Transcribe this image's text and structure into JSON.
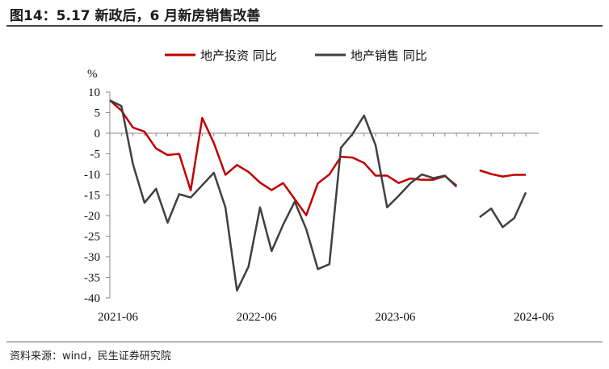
{
  "title": "图14：5.17 新政后，6 月新房销售改善",
  "source": "资料来源：wind，民生证券研究院",
  "chart_data": {
    "type": "line",
    "unit_label": "%",
    "ylim": [
      -40,
      10
    ],
    "y_ticks": [
      10,
      5,
      0,
      -5,
      -10,
      -15,
      -20,
      -25,
      -30,
      -35,
      -40
    ],
    "x_tick_labels": [
      "2021-06",
      "2022-06",
      "2023-06",
      "2024-06"
    ],
    "x_tick_index": [
      0,
      12,
      24,
      36
    ],
    "x": [
      "2021-06",
      "2021-07",
      "2021-08",
      "2021-09",
      "2021-10",
      "2021-11",
      "2021-12",
      "2022-01",
      "2022-02",
      "2022-03",
      "2022-04",
      "2022-05",
      "2022-06",
      "2022-07",
      "2022-08",
      "2022-09",
      "2022-10",
      "2022-11",
      "2022-12",
      "2023-01",
      "2023-02",
      "2023-03",
      "2023-04",
      "2023-05",
      "2023-06",
      "2023-07",
      "2023-08",
      "2023-09",
      "2023-10",
      "2023-11",
      "2023-12",
      "2024-01",
      "2024-02",
      "2024-03",
      "2024-04",
      "2024-05",
      "2024-06"
    ],
    "legend_position": "top-center",
    "grid": false,
    "series": [
      {
        "name": "地产投资 同比",
        "color": "#c00000",
        "values": [
          8.0,
          5.5,
          1.4,
          0.4,
          -3.7,
          -5.3,
          -5.0,
          -13.9,
          3.7,
          -2.4,
          -10.1,
          -7.7,
          -9.4,
          -12.0,
          -13.8,
          -12.1,
          -16.0,
          -19.9,
          -12.2,
          -10.0,
          -5.7,
          -5.9,
          -7.2,
          -10.3,
          -10.3,
          -12.1,
          -11.0,
          -11.3,
          -11.3,
          -10.4,
          -12.7,
          null,
          -9.0,
          -9.9,
          -10.5,
          -10.1,
          -10.1
        ],
        "values_note": ""
      },
      {
        "name": "地产销售 同比",
        "color": "#404040",
        "values": [
          8.0,
          6.6,
          -7.5,
          -16.9,
          -13.5,
          -21.7,
          -14.8,
          -15.6,
          -12.6,
          -9.6,
          -18.0,
          -38.2,
          -32.4,
          -18.0,
          -28.6,
          -22.2,
          -16.6,
          -23.3,
          -33.0,
          -31.8,
          -3.5,
          -0.2,
          4.3,
          -2.9,
          -18.0,
          -15.2,
          -12.2,
          -10.0,
          -10.9,
          -10.3,
          -13.0,
          null,
          -20.4,
          -18.3,
          -22.8,
          -20.6,
          -14.4
        ],
        "values_note": ""
      }
    ]
  }
}
